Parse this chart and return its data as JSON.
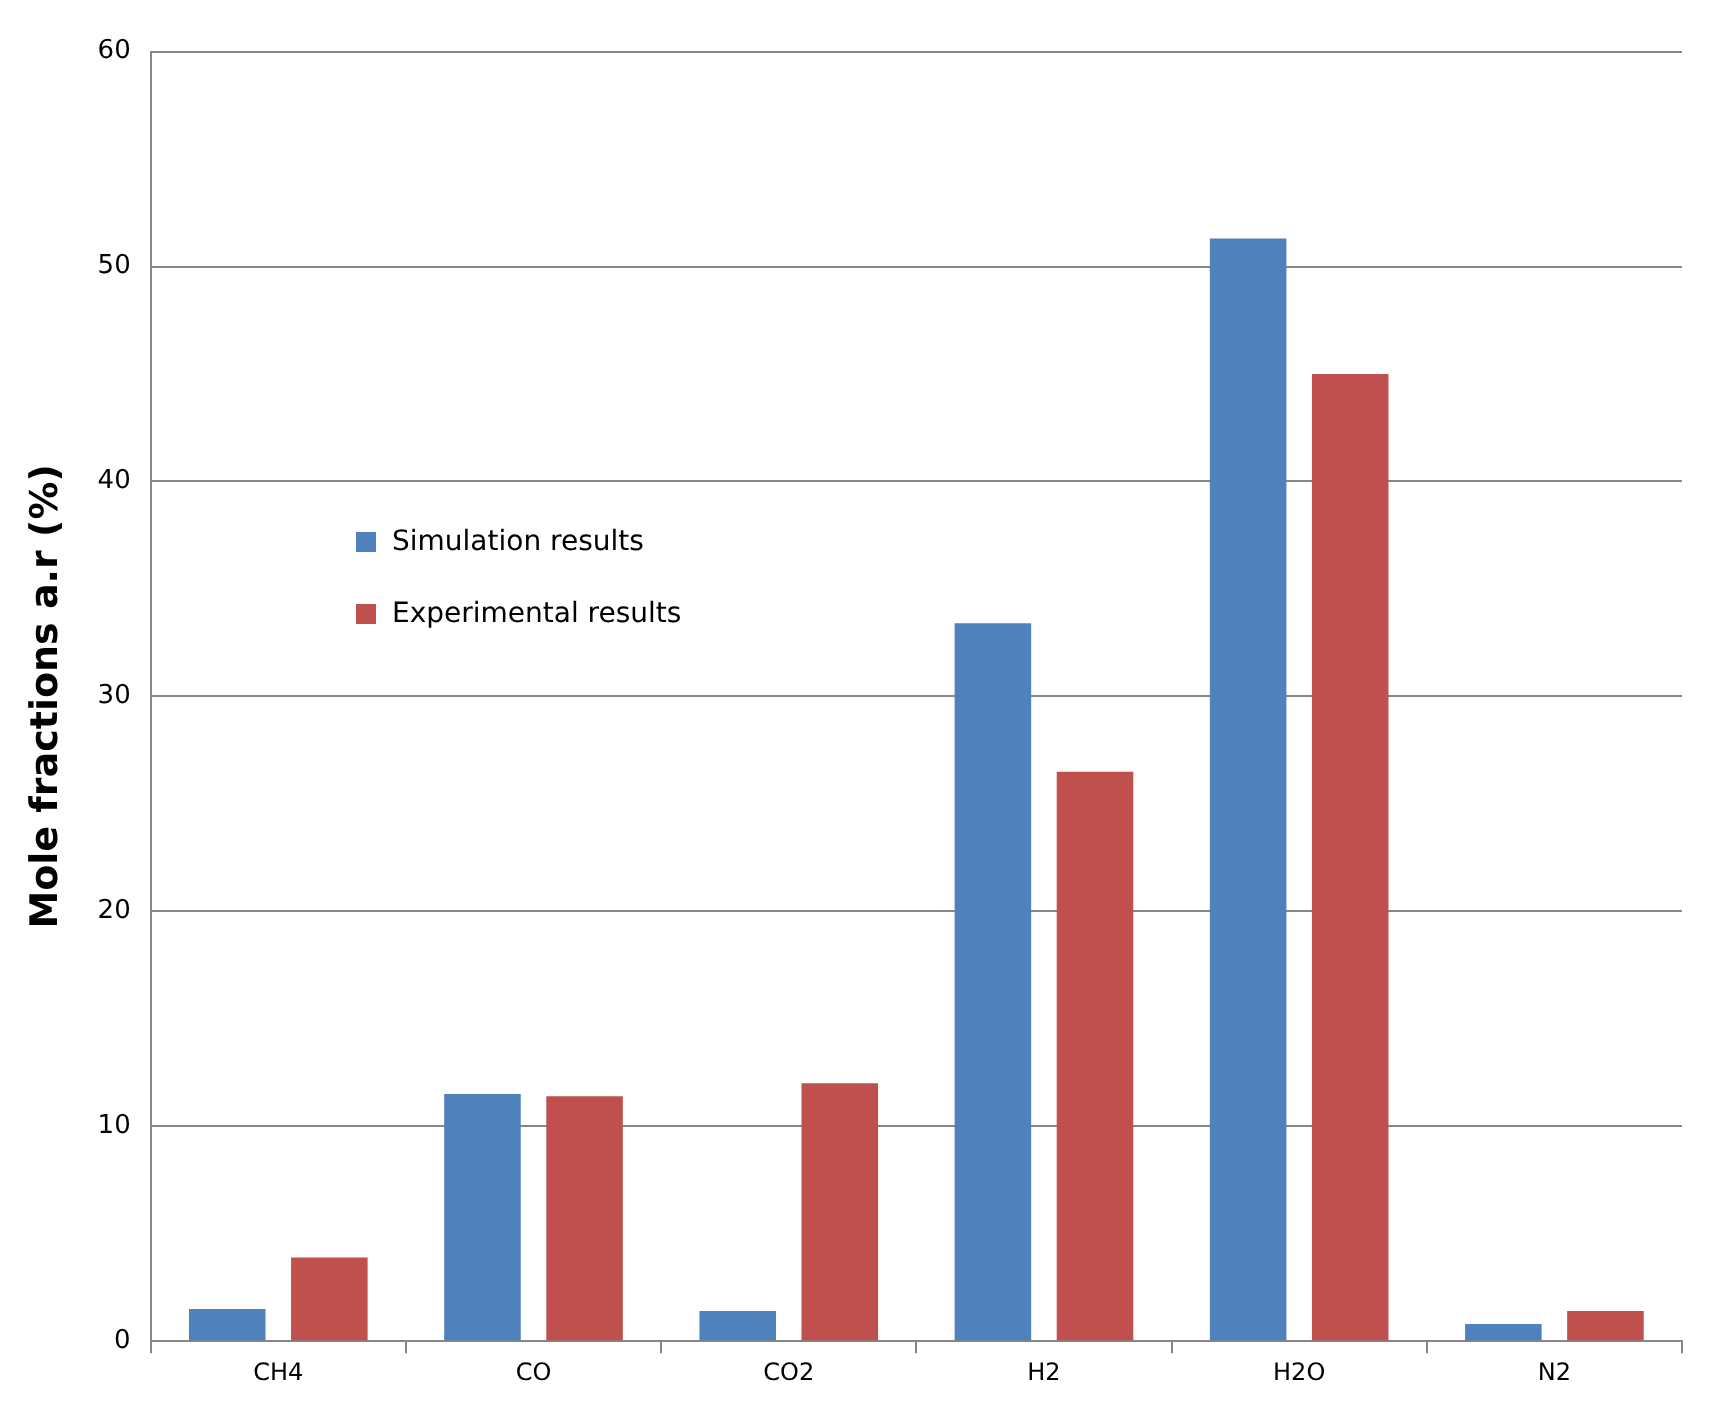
{
  "chart_data": {
    "type": "bar",
    "ylabel": "Mole fractions a.r (%)",
    "categories": [
      "CH4",
      "CO",
      "CO2",
      "H2",
      "H2O",
      "N2"
    ],
    "series": [
      {
        "name": "Simulation results",
        "color": "#4f81bd",
        "values": [
          1.5,
          11.5,
          1.4,
          33.4,
          51.3,
          0.8
        ]
      },
      {
        "name": "Experimental results",
        "color": "#c0504d",
        "values": [
          3.9,
          11.4,
          12.0,
          26.5,
          45.0,
          1.4
        ]
      }
    ],
    "ylim": [
      0,
      60
    ],
    "yticks": [
      0,
      10,
      20,
      30,
      40,
      50,
      60
    ],
    "grid": "y",
    "legend": "left"
  }
}
